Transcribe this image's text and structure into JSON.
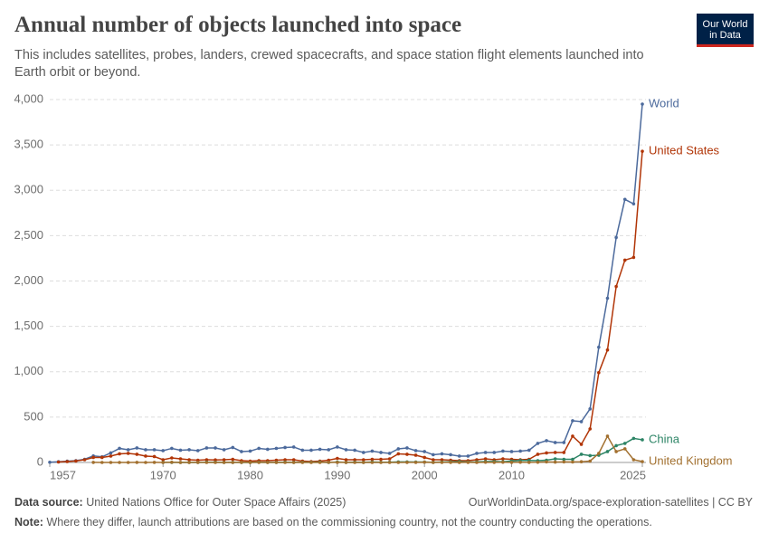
{
  "header": {
    "title": "Annual number of objects launched into space",
    "subtitle": "This includes satellites, probes, landers, crewed spacecrafts, and space station flight elements launched into Earth orbit or beyond.",
    "logo": [
      "Our World",
      "in Data"
    ]
  },
  "footer": {
    "source_label": "Data source:",
    "source": "United Nations Office for Outer Space Affairs (2025)",
    "url": "OurWorldinData.org/space-exploration-satellites | CC BY",
    "note_label": "Note:",
    "note": "Where they differ, launch attributions are based on the commissioning country, not the country conducting the operations."
  },
  "chart_data": {
    "type": "line",
    "x": [
      1957,
      1958,
      1959,
      1960,
      1961,
      1962,
      1963,
      1964,
      1965,
      1966,
      1967,
      1968,
      1969,
      1970,
      1971,
      1972,
      1973,
      1974,
      1975,
      1976,
      1977,
      1978,
      1979,
      1980,
      1981,
      1982,
      1983,
      1984,
      1985,
      1986,
      1987,
      1988,
      1989,
      1990,
      1991,
      1992,
      1993,
      1994,
      1995,
      1996,
      1997,
      1998,
      1999,
      2000,
      2001,
      2002,
      2003,
      2004,
      2005,
      2006,
      2007,
      2008,
      2009,
      2010,
      2011,
      2012,
      2013,
      2014,
      2015,
      2016,
      2017,
      2018,
      2019,
      2020,
      2021,
      2022,
      2023,
      2024,
      2025
    ],
    "series": [
      {
        "name": "World",
        "color": "#4c6a9c",
        "values": [
          2,
          8,
          14,
          20,
          35,
          72,
          62,
          105,
          155,
          140,
          160,
          140,
          140,
          130,
          155,
          135,
          140,
          130,
          160,
          160,
          140,
          165,
          120,
          125,
          155,
          145,
          155,
          165,
          170,
          135,
          135,
          145,
          140,
          170,
          140,
          135,
          110,
          125,
          110,
          100,
          150,
          160,
          130,
          120,
          85,
          95,
          85,
          70,
          70,
          100,
          110,
          110,
          125,
          120,
          125,
          135,
          210,
          240,
          220,
          220,
          460,
          450,
          590,
          1270,
          1810,
          2480,
          2900,
          2850,
          3950
        ]
      },
      {
        "name": "United States",
        "color": "#b13507",
        "values": [
          null,
          5,
          10,
          16,
          30,
          55,
          55,
          70,
          95,
          100,
          90,
          70,
          65,
          30,
          50,
          40,
          30,
          25,
          30,
          28,
          30,
          35,
          20,
          15,
          20,
          20,
          25,
          30,
          30,
          15,
          10,
          15,
          25,
          45,
          30,
          30,
          30,
          35,
          35,
          40,
          95,
          90,
          80,
          55,
          30,
          30,
          25,
          20,
          20,
          30,
          40,
          30,
          40,
          35,
          30,
          35,
          90,
          105,
          110,
          110,
          290,
          200,
          370,
          990,
          1240,
          1940,
          2230,
          2260,
          3430
        ]
      },
      {
        "name": "China",
        "color": "#2c8465",
        "values": [
          null,
          null,
          null,
          null,
          null,
          null,
          null,
          null,
          null,
          null,
          null,
          null,
          null,
          1,
          1,
          0,
          0,
          0,
          3,
          2,
          0,
          1,
          0,
          0,
          3,
          1,
          1,
          3,
          1,
          2,
          2,
          4,
          0,
          5,
          1,
          3,
          1,
          5,
          2,
          3,
          6,
          6,
          5,
          5,
          1,
          5,
          7,
          9,
          5,
          6,
          10,
          11,
          7,
          16,
          22,
          23,
          20,
          25,
          40,
          35,
          35,
          90,
          75,
          80,
          120,
          185,
          210,
          265,
          250
        ]
      },
      {
        "name": "United Kingdom",
        "color": "#a2702f",
        "values": [
          null,
          null,
          null,
          null,
          null,
          1,
          0,
          0,
          0,
          0,
          1,
          0,
          1,
          0,
          2,
          0,
          0,
          1,
          0,
          0,
          0,
          0,
          1,
          0,
          1,
          0,
          0,
          0,
          0,
          0,
          0,
          0,
          2,
          1,
          1,
          0,
          0,
          0,
          0,
          0,
          0,
          1,
          1,
          3,
          0,
          1,
          1,
          0,
          1,
          0,
          2,
          1,
          2,
          1,
          2,
          1,
          2,
          6,
          4,
          6,
          5,
          8,
          15,
          100,
          290,
          120,
          150,
          30,
          10
        ]
      }
    ],
    "xlim": [
      1957,
      2025
    ],
    "ylim": [
      0,
      4000
    ],
    "xticks": [
      1957,
      1970,
      1980,
      1990,
      2000,
      2010,
      2025
    ],
    "yticks": [
      0,
      500,
      {
        "value": 1000,
        "label": "1,000"
      },
      {
        "value": 1500,
        "label": "1,500"
      },
      {
        "value": 2000,
        "label": "2,000"
      },
      {
        "value": 2500,
        "label": "2,500"
      },
      {
        "value": 3000,
        "label": "3,000"
      },
      {
        "value": 3500,
        "label": "3,500"
      },
      {
        "value": 4000,
        "label": "4,000"
      }
    ],
    "grid": true
  }
}
